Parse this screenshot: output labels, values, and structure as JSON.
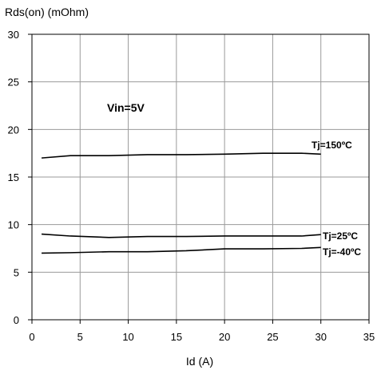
{
  "chart_data": {
    "type": "line",
    "ylabel": "Rds(on) (mOhm)",
    "xlabel": "Id (A)",
    "xlim": [
      0,
      35
    ],
    "ylim": [
      0,
      30
    ],
    "xticks": [
      0,
      5,
      10,
      15,
      20,
      25,
      30,
      35
    ],
    "yticks": [
      0,
      5,
      10,
      15,
      20,
      25,
      30
    ],
    "grid": true,
    "annotation": "Vin=5V",
    "series": [
      {
        "name": "Tj=150ºC",
        "x": [
          1,
          4,
          8,
          12,
          16,
          20,
          24,
          28,
          30
        ],
        "y": [
          17.0,
          17.25,
          17.25,
          17.35,
          17.35,
          17.4,
          17.5,
          17.5,
          17.4
        ]
      },
      {
        "name": "Tj=25ºC",
        "x": [
          1,
          4,
          8,
          12,
          16,
          20,
          24,
          28,
          30
        ],
        "y": [
          9.0,
          8.8,
          8.65,
          8.75,
          8.75,
          8.8,
          8.8,
          8.8,
          8.95
        ]
      },
      {
        "name": "Tj=-40ºC",
        "x": [
          1,
          4,
          8,
          12,
          16,
          20,
          24,
          28,
          30
        ],
        "y": [
          7.0,
          7.05,
          7.15,
          7.15,
          7.25,
          7.45,
          7.45,
          7.5,
          7.6
        ]
      }
    ]
  }
}
